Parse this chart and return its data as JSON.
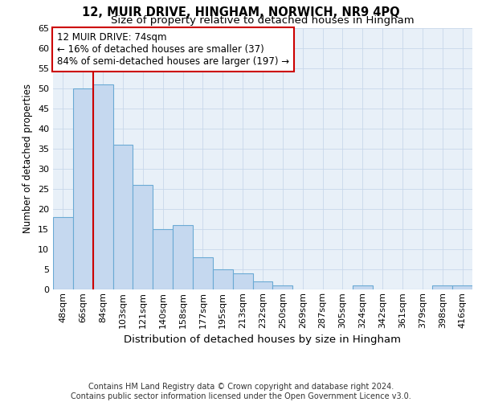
{
  "title1": "12, MUIR DRIVE, HINGHAM, NORWICH, NR9 4PQ",
  "title2": "Size of property relative to detached houses in Hingham",
  "xlabel": "Distribution of detached houses by size in Hingham",
  "ylabel": "Number of detached properties",
  "categories": [
    "48sqm",
    "66sqm",
    "84sqm",
    "103sqm",
    "121sqm",
    "140sqm",
    "158sqm",
    "177sqm",
    "195sqm",
    "213sqm",
    "232sqm",
    "250sqm",
    "269sqm",
    "287sqm",
    "305sqm",
    "324sqm",
    "342sqm",
    "361sqm",
    "379sqm",
    "398sqm",
    "416sqm"
  ],
  "values": [
    18,
    50,
    51,
    36,
    26,
    15,
    16,
    8,
    5,
    4,
    2,
    1,
    0,
    0,
    0,
    1,
    0,
    0,
    0,
    1,
    1
  ],
  "bar_color": "#c5d8ef",
  "bar_edge_color": "#6aaad4",
  "vline_x_idx": 1.5,
  "vline_color": "#cc0000",
  "annotation_text": "12 MUIR DRIVE: 74sqm\n← 16% of detached houses are smaller (37)\n84% of semi-detached houses are larger (197) →",
  "annotation_box_facecolor": "#ffffff",
  "annotation_box_edgecolor": "#cc0000",
  "ylim": [
    0,
    65
  ],
  "yticks": [
    0,
    5,
    10,
    15,
    20,
    25,
    30,
    35,
    40,
    45,
    50,
    55,
    60,
    65
  ],
  "grid_color": "#c8d8ea",
  "background_color": "#e8f0f8",
  "footer_text": "Contains HM Land Registry data © Crown copyright and database right 2024.\nContains public sector information licensed under the Open Government Licence v3.0.",
  "title1_fontsize": 10.5,
  "title2_fontsize": 9.5,
  "xlabel_fontsize": 9.5,
  "ylabel_fontsize": 8.5,
  "tick_fontsize": 8,
  "annotation_fontsize": 8.5,
  "footer_fontsize": 7
}
